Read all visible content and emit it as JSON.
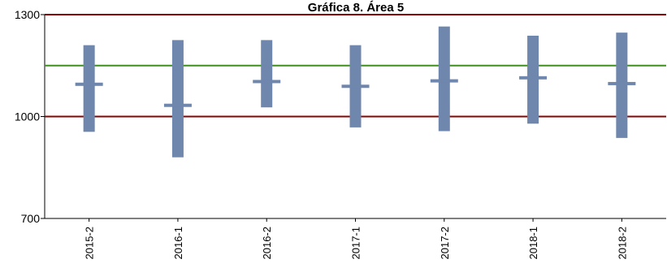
{
  "chart_data": {
    "type": "range",
    "title": "Gráfica 8. Área 5",
    "xlabel": "",
    "ylabel": "",
    "ylim": [
      700,
      1300
    ],
    "yticks": [
      "700",
      "1000",
      "1300"
    ],
    "grid": false,
    "categories": [
      "2015-2",
      "2016-1",
      "2016-2",
      "2017-1",
      "2017-2",
      "2018-1",
      "2018-2"
    ],
    "ranges": [
      {
        "low": 955,
        "high": 1210,
        "mean": 1095
      },
      {
        "low": 880,
        "high": 1225,
        "mean": 1033
      },
      {
        "low": 1027,
        "high": 1225,
        "mean": 1103
      },
      {
        "low": 968,
        "high": 1210,
        "mean": 1089
      },
      {
        "low": 957,
        "high": 1265,
        "mean": 1105
      },
      {
        "low": 979,
        "high": 1238,
        "mean": 1114
      },
      {
        "low": 937,
        "high": 1247,
        "mean": 1097
      }
    ],
    "reference_lines": [
      {
        "value": 1300,
        "color": "#8b0000"
      },
      {
        "value": 1150,
        "color": "#3f8f1f"
      },
      {
        "value": 1000,
        "color": "#8b0000"
      }
    ],
    "colors": {
      "range_bar": "#6f86ad",
      "mean_marker": "#6f86ad",
      "axis": "#000000"
    }
  }
}
